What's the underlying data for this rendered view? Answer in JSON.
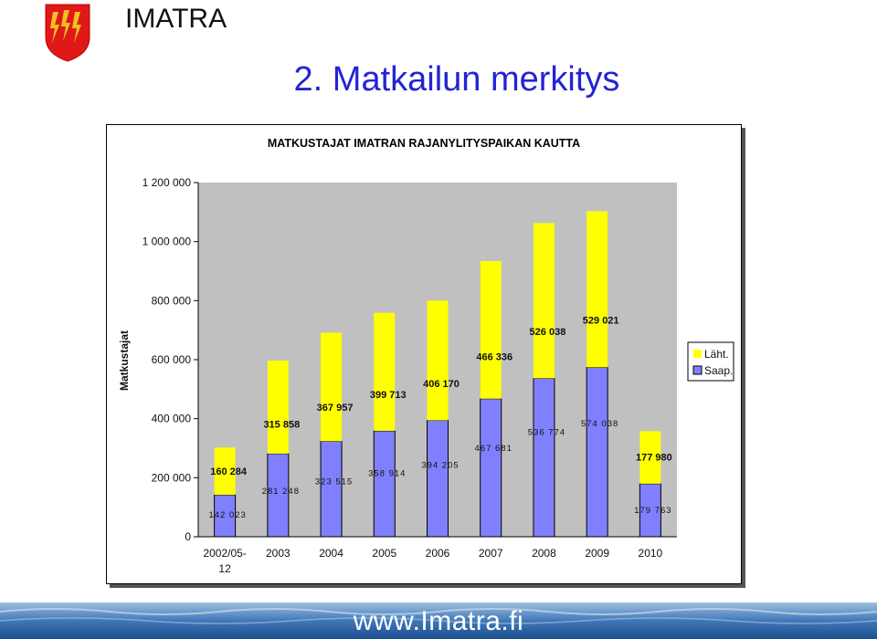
{
  "header": {
    "brand": "IMATRA",
    "slide_title": "2. Matkailun merkitys"
  },
  "footer": {
    "url": "www.Imatra.fi"
  },
  "colors": {
    "title": "#2323d6",
    "arriving": "#8080ff",
    "departing": "#ffff00",
    "plot_background": "#c0c0c0",
    "logo_red": "#e01818",
    "logo_gold": "#f0c020"
  },
  "chart_data": {
    "type": "bar",
    "stacked": true,
    "title": "MATKUSTAJAT IMATRAN RAJANYLITYSPAIKAN KAUTTA",
    "xlabel": "",
    "ylabel": "Matkustajat",
    "ylim": [
      0,
      1200000
    ],
    "yticks": [
      0,
      200000,
      400000,
      600000,
      800000,
      1000000,
      1200000
    ],
    "ytick_labels": [
      "0",
      "200 000",
      "400 000",
      "600 000",
      "800 000",
      "1 000 000",
      "1 200 000"
    ],
    "categories": [
      "2002/05-12",
      "2003",
      "2004",
      "2005",
      "2006",
      "2007",
      "2008",
      "2009",
      "2010"
    ],
    "category_lines": [
      [
        "2002/05-",
        "12"
      ],
      [
        "2003"
      ],
      [
        "2004"
      ],
      [
        "2005"
      ],
      [
        "2006"
      ],
      [
        "2007"
      ],
      [
        "2008"
      ],
      [
        "2009"
      ],
      [
        "2010"
      ]
    ],
    "grid": false,
    "legend_position": "right",
    "series": [
      {
        "name": "Saap.",
        "color": "#8080ff",
        "values": [
          142023,
          281248,
          323515,
          358914,
          394205,
          467681,
          536774,
          574038,
          179763
        ],
        "labels": [
          "142 023",
          "281 248",
          "323 515",
          "358 914",
          "394 205",
          "467 681",
          "536 774",
          "574 038",
          "179 763"
        ]
      },
      {
        "name": "Läht.",
        "color": "#ffff00",
        "values": [
          160284,
          315858,
          367957,
          399713,
          406170,
          466336,
          526038,
          529021,
          177980
        ],
        "labels": [
          "160 284",
          "315 858",
          "367 957",
          "399 713",
          "406 170",
          "466 336",
          "526 038",
          "529 021",
          "177 980"
        ]
      }
    ]
  }
}
